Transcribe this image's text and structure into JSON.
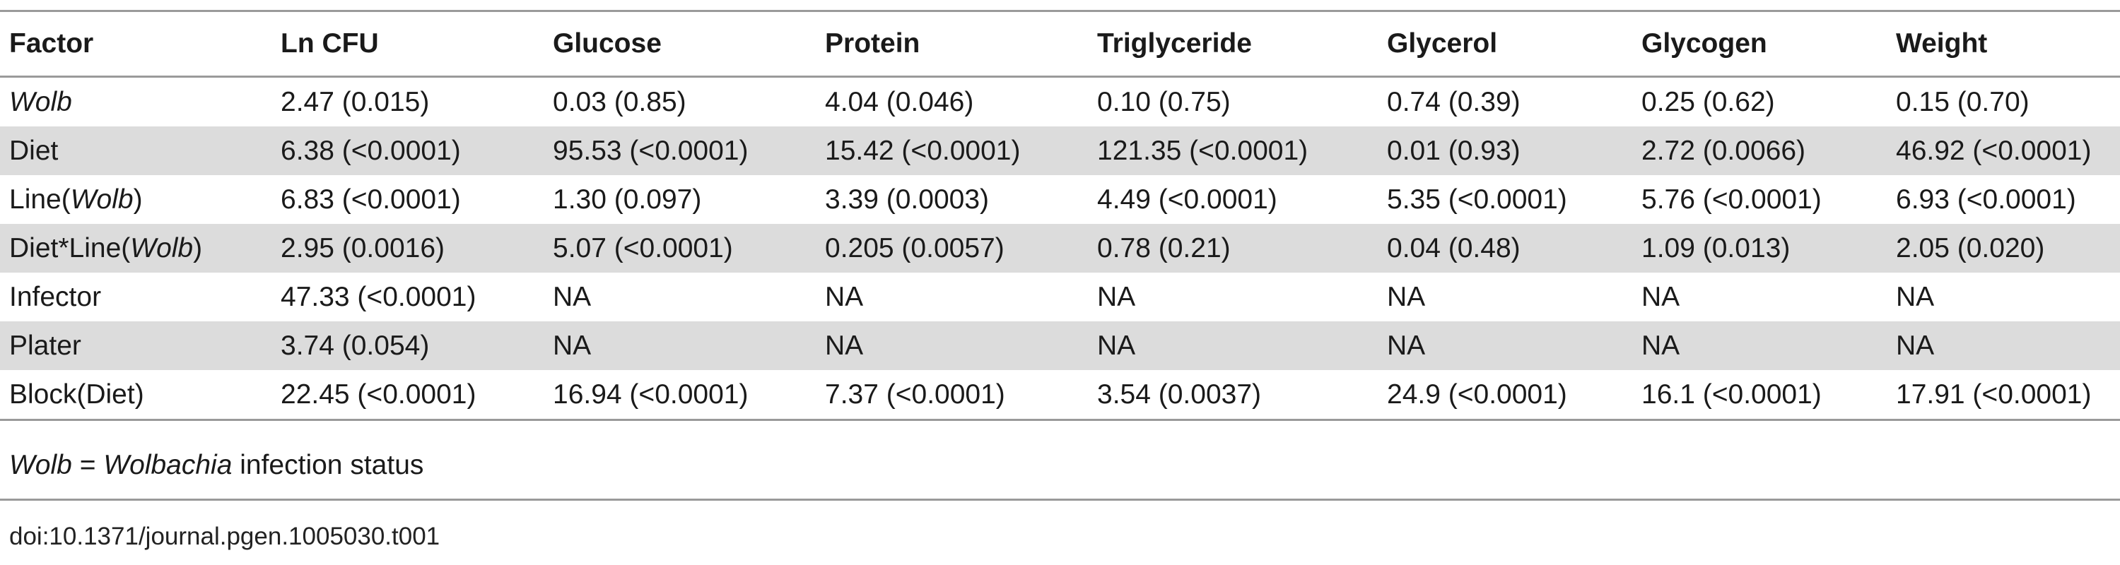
{
  "table": {
    "headers": [
      "Factor",
      "Ln CFU",
      "Glucose",
      "Protein",
      "Triglyceride",
      "Glycerol",
      "Glycogen",
      "Weight"
    ],
    "rows": [
      {
        "factor": {
          "pre": "",
          "it": "Wolb",
          "post": ""
        },
        "values": [
          "2.47 (0.015)",
          "0.03 (0.85)",
          "4.04 (0.046)",
          "0.10 (0.75)",
          "0.74 (0.39)",
          "0.25 (0.62)",
          "0.15 (0.70)"
        ]
      },
      {
        "factor": {
          "pre": "Diet",
          "it": "",
          "post": ""
        },
        "values": [
          "6.38 (<0.0001)",
          "95.53 (<0.0001)",
          "15.42 (<0.0001)",
          "121.35 (<0.0001)",
          "0.01 (0.93)",
          "2.72 (0.0066)",
          "46.92 (<0.0001)"
        ]
      },
      {
        "factor": {
          "pre": "Line(",
          "it": "Wolb",
          "post": ")"
        },
        "values": [
          "6.83 (<0.0001)",
          "1.30 (0.097)",
          "3.39 (0.0003)",
          "4.49 (<0.0001)",
          "5.35 (<0.0001)",
          "5.76 (<0.0001)",
          "6.93 (<0.0001)"
        ]
      },
      {
        "factor": {
          "pre": "Diet*Line(",
          "it": "Wolb",
          "post": ")"
        },
        "values": [
          "2.95 (0.0016)",
          "5.07 (<0.0001)",
          "0.205 (0.0057)",
          "0.78 (0.21)",
          "0.04 (0.48)",
          "1.09 (0.013)",
          "2.05 (0.020)"
        ]
      },
      {
        "factor": {
          "pre": "Infector",
          "it": "",
          "post": ""
        },
        "values": [
          "47.33 (<0.0001)",
          "NA",
          "NA",
          "NA",
          "NA",
          "NA",
          "NA"
        ]
      },
      {
        "factor": {
          "pre": "Plater",
          "it": "",
          "post": ""
        },
        "values": [
          "3.74 (0.054)",
          "NA",
          "NA",
          "NA",
          "NA",
          "NA",
          "NA"
        ]
      },
      {
        "factor": {
          "pre": "Block(Diet)",
          "it": "",
          "post": ""
        },
        "values": [
          "22.45 (<0.0001)",
          "16.94 (<0.0001)",
          "7.37 (<0.0001)",
          "3.54 (0.0037)",
          "24.9 (<0.0001)",
          "16.1 (<0.0001)",
          "17.91 (<0.0001)"
        ]
      }
    ]
  },
  "footnote": {
    "abbr": "Wolb",
    "eq": " = ",
    "term": "Wolbachia",
    "rest": " infection status"
  },
  "doi": "doi:10.1371/journal.pgen.1005030.t001"
}
